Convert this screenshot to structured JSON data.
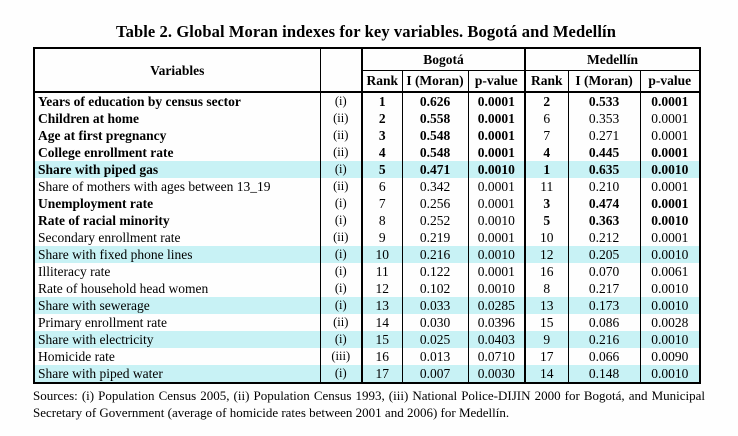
{
  "title": "Table 2. Global Moran indexes for key variables. Bogotá and Medellín",
  "table": {
    "variables_header": "Variables",
    "city_groups": [
      {
        "name": "Bogotá",
        "columns": [
          "Rank",
          "I (Moran)",
          "p-value"
        ]
      },
      {
        "name": "Medellín",
        "columns": [
          "Rank",
          "I (Moran)",
          "p-value"
        ]
      }
    ],
    "rows": [
      {
        "variable": "Years of education by census sector",
        "note": "(i)",
        "bold_name": true,
        "highlight": false,
        "bogota": {
          "rank": "1",
          "moran": "0.626",
          "p": "0.0001",
          "bold": true
        },
        "medellin": {
          "rank": "2",
          "moran": "0.533",
          "p": "0.0001",
          "bold": true
        }
      },
      {
        "variable": "Children at home",
        "note": "(ii)",
        "bold_name": true,
        "highlight": false,
        "bogota": {
          "rank": "2",
          "moran": "0.558",
          "p": "0.0001",
          "bold": true
        },
        "medellin": {
          "rank": "6",
          "moran": "0.353",
          "p": "0.0001",
          "bold": false
        }
      },
      {
        "variable": "Age at first pregnancy",
        "note": "(ii)",
        "bold_name": true,
        "highlight": false,
        "bogota": {
          "rank": "3",
          "moran": "0.548",
          "p": "0.0001",
          "bold": true
        },
        "medellin": {
          "rank": "7",
          "moran": "0.271",
          "p": "0.0001",
          "bold": false
        }
      },
      {
        "variable": "College enrollment rate",
        "note": "(ii)",
        "bold_name": true,
        "highlight": false,
        "bogota": {
          "rank": "4",
          "moran": "0.548",
          "p": "0.0001",
          "bold": true
        },
        "medellin": {
          "rank": "4",
          "moran": "0.445",
          "p": "0.0001",
          "bold": true
        }
      },
      {
        "variable": "Share with piped gas",
        "note": "(i)",
        "bold_name": true,
        "highlight": true,
        "bogota": {
          "rank": "5",
          "moran": "0.471",
          "p": "0.0010",
          "bold": true
        },
        "medellin": {
          "rank": "1",
          "moran": "0.635",
          "p": "0.0010",
          "bold": true
        }
      },
      {
        "variable": "Share of mothers with ages between 13_19",
        "note": "(ii)",
        "bold_name": false,
        "highlight": false,
        "bogota": {
          "rank": "6",
          "moran": "0.342",
          "p": "0.0001",
          "bold": false
        },
        "medellin": {
          "rank": "11",
          "moran": "0.210",
          "p": "0.0001",
          "bold": false
        }
      },
      {
        "variable": "Unemployment rate",
        "note": "(i)",
        "bold_name": true,
        "highlight": false,
        "bogota": {
          "rank": "7",
          "moran": "0.256",
          "p": "0.0001",
          "bold": false
        },
        "medellin": {
          "rank": "3",
          "moran": "0.474",
          "p": "0.0001",
          "bold": true
        }
      },
      {
        "variable": "Rate of racial minority",
        "note": "(i)",
        "bold_name": true,
        "highlight": false,
        "bogota": {
          "rank": "8",
          "moran": "0.252",
          "p": "0.0010",
          "bold": false
        },
        "medellin": {
          "rank": "5",
          "moran": "0.363",
          "p": "0.0010",
          "bold": true
        }
      },
      {
        "variable": "Secondary enrollment rate",
        "note": "(ii)",
        "bold_name": false,
        "highlight": false,
        "bogota": {
          "rank": "9",
          "moran": "0.219",
          "p": "0.0001",
          "bold": false
        },
        "medellin": {
          "rank": "10",
          "moran": "0.212",
          "p": "0.0001",
          "bold": false
        }
      },
      {
        "variable": "Share with fixed phone lines",
        "note": "(i)",
        "bold_name": false,
        "highlight": true,
        "bogota": {
          "rank": "10",
          "moran": "0.216",
          "p": "0.0010",
          "bold": false
        },
        "medellin": {
          "rank": "12",
          "moran": "0.205",
          "p": "0.0010",
          "bold": false
        }
      },
      {
        "variable": "Illiteracy rate",
        "note": "(i)",
        "bold_name": false,
        "highlight": false,
        "bogota": {
          "rank": "11",
          "moran": "0.122",
          "p": "0.0001",
          "bold": false
        },
        "medellin": {
          "rank": "16",
          "moran": "0.070",
          "p": "0.0061",
          "bold": false
        }
      },
      {
        "variable": "Rate of household head women",
        "note": "(i)",
        "bold_name": false,
        "highlight": false,
        "bogota": {
          "rank": "12",
          "moran": "0.102",
          "p": "0.0010",
          "bold": false
        },
        "medellin": {
          "rank": "8",
          "moran": "0.217",
          "p": "0.0010",
          "bold": false
        }
      },
      {
        "variable": "Share with sewerage",
        "note": "(i)",
        "bold_name": false,
        "highlight": true,
        "bogota": {
          "rank": "13",
          "moran": "0.033",
          "p": "0.0285",
          "bold": false
        },
        "medellin": {
          "rank": "13",
          "moran": "0.173",
          "p": "0.0010",
          "bold": false
        }
      },
      {
        "variable": "Primary enrollment rate",
        "note": "(ii)",
        "bold_name": false,
        "highlight": false,
        "bogota": {
          "rank": "14",
          "moran": "0.030",
          "p": "0.0396",
          "bold": false
        },
        "medellin": {
          "rank": "15",
          "moran": "0.086",
          "p": "0.0028",
          "bold": false
        }
      },
      {
        "variable": "Share with electricity",
        "note": "(i)",
        "bold_name": false,
        "highlight": true,
        "bogota": {
          "rank": "15",
          "moran": "0.025",
          "p": "0.0403",
          "bold": false
        },
        "medellin": {
          "rank": "9",
          "moran": "0.216",
          "p": "0.0010",
          "bold": false
        }
      },
      {
        "variable": "Homicide rate",
        "note": "(iii)",
        "bold_name": false,
        "highlight": false,
        "bogota": {
          "rank": "16",
          "moran": "0.013",
          "p": "0.0710",
          "bold": false
        },
        "medellin": {
          "rank": "17",
          "moran": "0.066",
          "p": "0.0090",
          "bold": false
        }
      },
      {
        "variable": "Share with piped water",
        "note": "(i)",
        "bold_name": false,
        "highlight": true,
        "bogota": {
          "rank": "17",
          "moran": "0.007",
          "p": "0.0030",
          "bold": false
        },
        "medellin": {
          "rank": "14",
          "moran": "0.148",
          "p": "0.0010",
          "bold": false
        }
      }
    ]
  },
  "footnote": "Sources: (i) Population Census 2005, (ii) Population Census 1993, (iii) National Police-DIJIN 2000 for Bogotá, and Municipal Secretary of Government (average of homicide rates between 2001 and 2006) for Medellín.",
  "colors": {
    "highlight": "#c8f2f5",
    "border": "#000000",
    "text": "#000000",
    "background": "#ffffff"
  }
}
